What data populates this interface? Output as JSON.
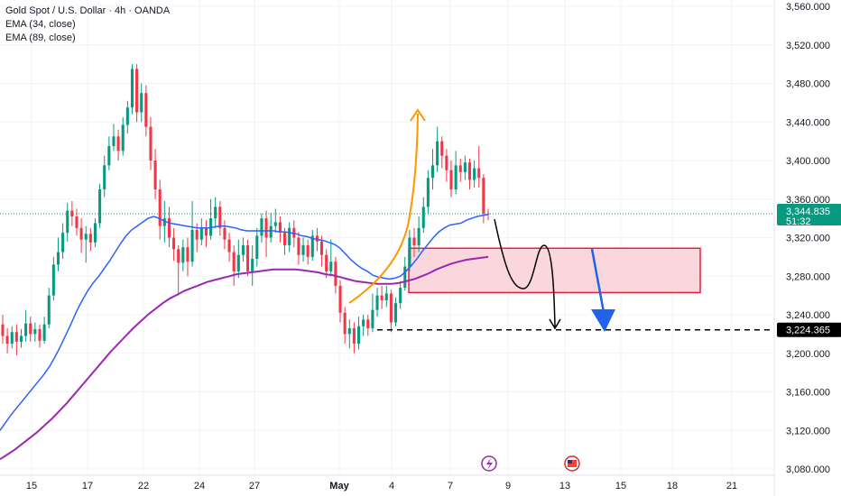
{
  "legend": {
    "title": "Gold Spot / U.S. Dollar · 4h · OANDA",
    "ema1": "EMA (34, close)",
    "ema2": "EMA (89, close)"
  },
  "chart_data": {
    "type": "candlestick",
    "ylim": [
      3070,
      3565
    ],
    "y_ticks": [
      3080,
      3120,
      3160,
      3200,
      3240,
      3280,
      3320,
      3360,
      3400,
      3440,
      3480,
      3520,
      3560
    ],
    "y_tick_labels": [
      "3,080.000",
      "3,120.000",
      "3,160.000",
      "3,200.000",
      "3,240.000",
      "3,280.000",
      "3,320.000",
      "3,360.000",
      "3,400.000",
      "3,440.000",
      "3,480.000",
      "3,520.000",
      "3,560.000"
    ],
    "x_ticks": [
      "15",
      "17",
      "22",
      "24",
      "27",
      "May",
      "4",
      "7",
      "9",
      "13",
      "15",
      "18",
      "21"
    ],
    "current_price_label": "3,344.835",
    "countdown_label": "51:32",
    "target_price_label": "3,224.365",
    "target_price": 3224.365,
    "current_price": 3344.835,
    "colors": {
      "up": "#089981",
      "down": "#f23645",
      "ema34": "#2962ff",
      "ema89": "#9c27b0",
      "arrow_orange": "#ff9800",
      "zone": "#f7c9d1",
      "zone_border": "#e91e3f",
      "arrow_blue": "#1e63e9"
    },
    "candles": [
      [
        3230,
        3218,
        3240,
        3210
      ],
      [
        3218,
        3210,
        3226,
        3200
      ],
      [
        3210,
        3222,
        3228,
        3205
      ],
      [
        3222,
        3212,
        3230,
        3198
      ],
      [
        3212,
        3218,
        3225,
        3206
      ],
      [
        3218,
        3231,
        3245,
        3212
      ],
      [
        3231,
        3220,
        3238,
        3212
      ],
      [
        3220,
        3225,
        3232,
        3212
      ],
      [
        3225,
        3213,
        3230,
        3206
      ],
      [
        3213,
        3230,
        3238,
        3210
      ],
      [
        3230,
        3260,
        3268,
        3226
      ],
      [
        3260,
        3292,
        3300,
        3255
      ],
      [
        3292,
        3305,
        3320,
        3285
      ],
      [
        3305,
        3325,
        3335,
        3298
      ],
      [
        3325,
        3348,
        3356,
        3316
      ],
      [
        3348,
        3342,
        3358,
        3332
      ],
      [
        3342,
        3330,
        3350,
        3322
      ],
      [
        3330,
        3318,
        3340,
        3304
      ],
      [
        3318,
        3324,
        3332,
        3294
      ],
      [
        3324,
        3315,
        3330,
        3306
      ],
      [
        3315,
        3335,
        3340,
        3310
      ],
      [
        3335,
        3370,
        3376,
        3330
      ],
      [
        3370,
        3395,
        3405,
        3362
      ],
      [
        3395,
        3415,
        3425,
        3390
      ],
      [
        3415,
        3425,
        3438,
        3410
      ],
      [
        3425,
        3410,
        3432,
        3400
      ],
      [
        3410,
        3437,
        3445,
        3405
      ],
      [
        3437,
        3455,
        3462,
        3428
      ],
      [
        3455,
        3495,
        3500,
        3448
      ],
      [
        3495,
        3450,
        3500,
        3440
      ],
      [
        3450,
        3470,
        3480,
        3440
      ],
      [
        3470,
        3435,
        3478,
        3425
      ],
      [
        3435,
        3400,
        3445,
        3390
      ],
      [
        3400,
        3370,
        3412,
        3360
      ],
      [
        3370,
        3332,
        3380,
        3318
      ],
      [
        3332,
        3340,
        3358,
        3315
      ],
      [
        3340,
        3320,
        3352,
        3310
      ],
      [
        3320,
        3308,
        3330,
        3296
      ],
      [
        3308,
        3294,
        3312,
        3260
      ],
      [
        3294,
        3310,
        3318,
        3285
      ],
      [
        3310,
        3295,
        3320,
        3280
      ],
      [
        3295,
        3328,
        3358,
        3290
      ],
      [
        3328,
        3318,
        3335,
        3305
      ],
      [
        3318,
        3330,
        3340,
        3312
      ],
      [
        3330,
        3322,
        3338,
        3310
      ],
      [
        3322,
        3340,
        3360,
        3318
      ],
      [
        3340,
        3352,
        3362,
        3330
      ],
      [
        3352,
        3330,
        3358,
        3322
      ],
      [
        3330,
        3318,
        3338,
        3308
      ],
      [
        3318,
        3305,
        3325,
        3295
      ],
      [
        3305,
        3285,
        3312,
        3270
      ],
      [
        3285,
        3302,
        3318,
        3278
      ],
      [
        3302,
        3312,
        3320,
        3295
      ],
      [
        3312,
        3285,
        3318,
        3280
      ],
      [
        3285,
        3298,
        3312,
        3270
      ],
      [
        3298,
        3322,
        3330,
        3290
      ],
      [
        3322,
        3340,
        3345,
        3315
      ],
      [
        3340,
        3320,
        3348,
        3300
      ],
      [
        3320,
        3332,
        3346,
        3315
      ],
      [
        3332,
        3336,
        3350,
        3325
      ],
      [
        3336,
        3325,
        3342,
        3315
      ],
      [
        3325,
        3312,
        3330,
        3302
      ],
      [
        3312,
        3330,
        3336,
        3305
      ],
      [
        3330,
        3320,
        3338,
        3310
      ],
      [
        3320,
        3302,
        3326,
        3292
      ],
      [
        3302,
        3312,
        3320,
        3295
      ],
      [
        3312,
        3300,
        3318,
        3292
      ],
      [
        3300,
        3322,
        3328,
        3296
      ],
      [
        3322,
        3316,
        3330,
        3306
      ],
      [
        3316,
        3302,
        3322,
        3290
      ],
      [
        3302,
        3285,
        3308,
        3278
      ],
      [
        3285,
        3295,
        3318,
        3280
      ],
      [
        3295,
        3270,
        3300,
        3262
      ],
      [
        3270,
        3242,
        3276,
        3232
      ],
      [
        3242,
        3220,
        3248,
        3210
      ],
      [
        3220,
        3226,
        3235,
        3205
      ],
      [
        3226,
        3210,
        3232,
        3200
      ],
      [
        3210,
        3228,
        3238,
        3204
      ],
      [
        3228,
        3235,
        3240,
        3218
      ],
      [
        3235,
        3226,
        3240,
        3218
      ],
      [
        3226,
        3245,
        3262,
        3222
      ],
      [
        3245,
        3260,
        3268,
        3238
      ],
      [
        3260,
        3255,
        3270,
        3246
      ],
      [
        3255,
        3262,
        3270,
        3248
      ],
      [
        3262,
        3232,
        3266,
        3222
      ],
      [
        3232,
        3252,
        3258,
        3228
      ],
      [
        3252,
        3268,
        3275,
        3246
      ],
      [
        3268,
        3290,
        3300,
        3265
      ],
      [
        3290,
        3320,
        3328,
        3285
      ],
      [
        3320,
        3312,
        3330,
        3300
      ],
      [
        3312,
        3330,
        3342,
        3305
      ],
      [
        3330,
        3352,
        3362,
        3325
      ],
      [
        3352,
        3382,
        3390,
        3345
      ],
      [
        3382,
        3395,
        3412,
        3370
      ],
      [
        3395,
        3420,
        3435,
        3388
      ],
      [
        3420,
        3405,
        3425,
        3392
      ],
      [
        3405,
        3390,
        3412,
        3378
      ],
      [
        3390,
        3370,
        3400,
        3362
      ],
      [
        3370,
        3395,
        3410,
        3365
      ],
      [
        3395,
        3388,
        3402,
        3378
      ],
      [
        3388,
        3398,
        3405,
        3380
      ],
      [
        3398,
        3380,
        3402,
        3370
      ],
      [
        3380,
        3392,
        3400,
        3372
      ],
      [
        3392,
        3382,
        3415,
        3372
      ],
      [
        3382,
        3345,
        3386,
        3335
      ],
      [
        3345,
        3344.835,
        3350,
        3338
      ]
    ],
    "ema34": [
      3120,
      3128,
      3136,
      3143,
      3150,
      3157,
      3164,
      3171,
      3178,
      3186,
      3196,
      3207,
      3219,
      3231,
      3244,
      3255,
      3265,
      3273,
      3280,
      3288,
      3296,
      3305,
      3314,
      3322,
      3328,
      3332,
      3336,
      3340,
      3342,
      3340,
      3337,
      3335,
      3334,
      3333,
      3332,
      3331,
      3330,
      3330,
      3330,
      3331,
      3332,
      3332,
      3331,
      3330,
      3328,
      3327,
      3327,
      3327,
      3327,
      3327,
      3327,
      3326,
      3326,
      3325,
      3324,
      3322,
      3321,
      3319,
      3318,
      3317,
      3315,
      3313,
      3309,
      3303,
      3297,
      3292,
      3288,
      3285,
      3281,
      3279,
      3278,
      3277,
      3278,
      3280,
      3285,
      3291,
      3298,
      3306,
      3313,
      3320,
      3326,
      3330,
      3333,
      3334,
      3335,
      3338,
      3340,
      3342,
      3343,
      3344
    ],
    "ema89": [
      3090,
      3095,
      3100,
      3106,
      3112,
      3118,
      3125,
      3132,
      3140,
      3148,
      3157,
      3166,
      3175,
      3184,
      3193,
      3202,
      3210,
      3218,
      3226,
      3233,
      3240,
      3246,
      3252,
      3257,
      3261,
      3265,
      3268,
      3271,
      3274,
      3276,
      3278,
      3280,
      3282,
      3283,
      3284,
      3285,
      3286,
      3287,
      3287,
      3287,
      3287,
      3286,
      3285,
      3284,
      3282,
      3281,
      3279,
      3277,
      3275,
      3274,
      3273,
      3272,
      3272,
      3272,
      3273,
      3275,
      3277,
      3280,
      3283,
      3287,
      3290,
      3293,
      3295,
      3297,
      3298,
      3299,
      3300
    ]
  }
}
